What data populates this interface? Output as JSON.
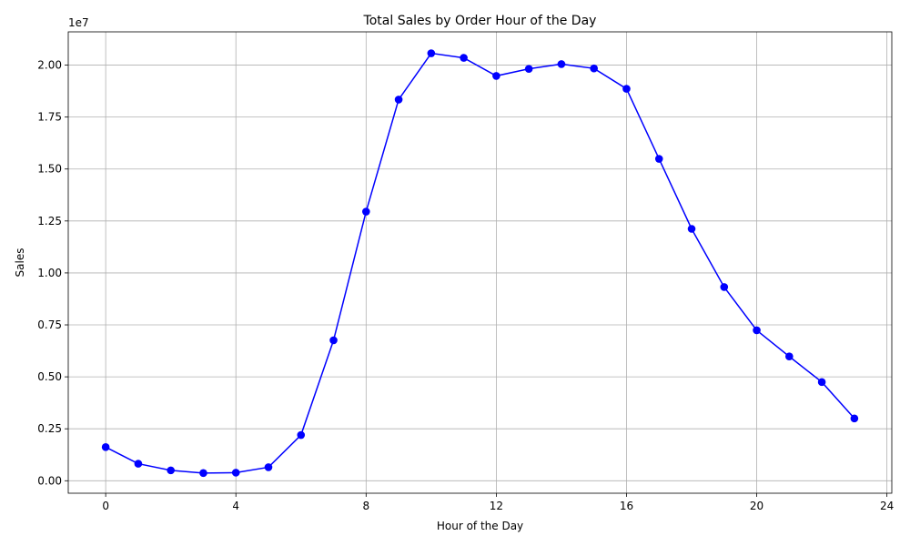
{
  "chart_data": {
    "type": "line",
    "title": "Total Sales by Order Hour of the Day",
    "xlabel": "Hour of the Day",
    "ylabel": "Sales",
    "y_offset_label": "1e7",
    "xlim": [
      -1.15,
      24.15
    ],
    "ylim": [
      -0.06,
      2.16
    ],
    "x_ticks": [
      0,
      4,
      8,
      12,
      16,
      20,
      24
    ],
    "x_tick_labels": [
      "0",
      "4",
      "8",
      "12",
      "16",
      "20",
      "24"
    ],
    "y_ticks": [
      0,
      0.25,
      0.5,
      0.75,
      1.0,
      1.25,
      1.5,
      1.75,
      2.0
    ],
    "y_tick_labels": [
      "0.00",
      "0.25",
      "0.50",
      "0.75",
      "1.00",
      "1.25",
      "1.50",
      "1.75",
      "2.00"
    ],
    "grid": true,
    "color": "#0000ff",
    "series": [
      {
        "x": [
          0,
          1,
          2,
          3,
          4,
          5,
          6,
          7,
          8,
          9,
          10,
          11,
          12,
          13,
          14,
          15,
          16,
          17,
          18,
          19,
          20,
          21,
          22,
          23
        ],
        "y": [
          0.162,
          0.082,
          0.05,
          0.037,
          0.039,
          0.065,
          0.22,
          0.676,
          1.295,
          1.834,
          2.057,
          2.035,
          1.948,
          1.982,
          2.005,
          1.984,
          1.886,
          1.549,
          1.212,
          0.932,
          0.724,
          0.598,
          0.475,
          0.3
        ]
      }
    ]
  }
}
